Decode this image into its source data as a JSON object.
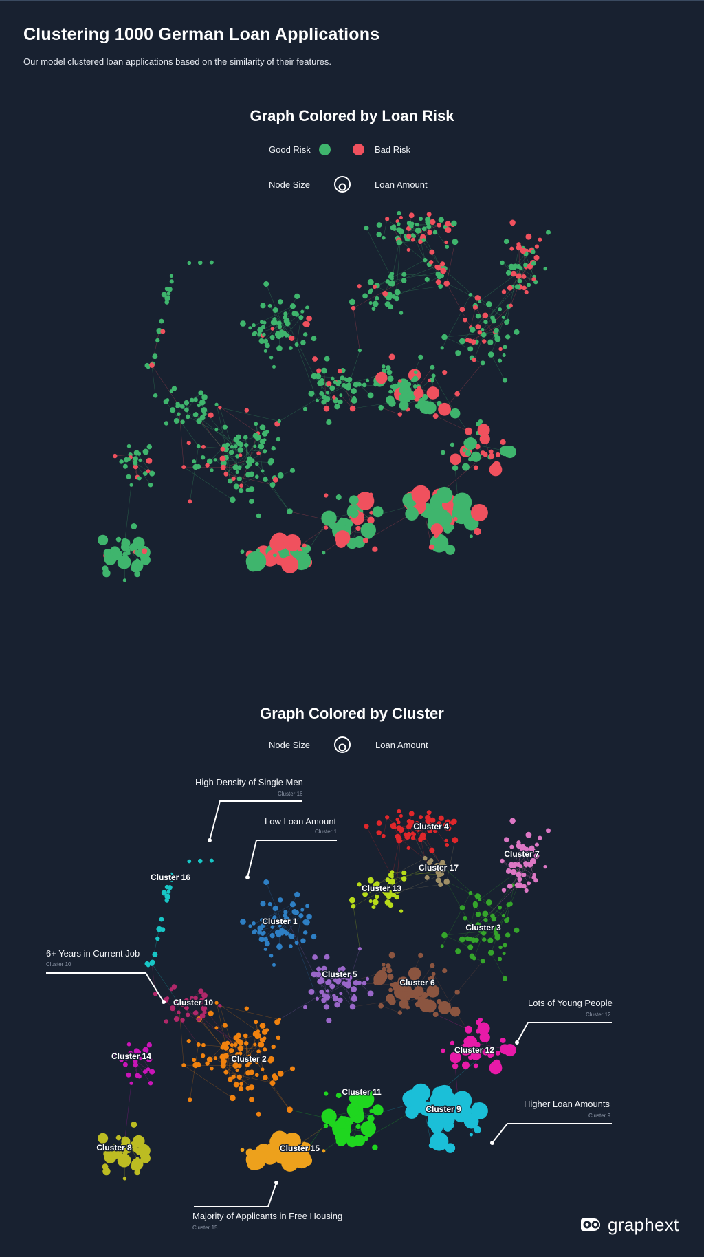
{
  "title": "Clustering 1000 German Loan Applications",
  "subtitle": "Our model clustered loan applications based on the similarity of their features.",
  "risk_section": {
    "title": "Graph Colored by Loan Risk",
    "legend": [
      {
        "label": "Good Risk",
        "color": "#3fb56d"
      },
      {
        "label": "Bad Risk",
        "color": "#f0515e"
      }
    ],
    "node_size_label": "Node Size",
    "node_size_value": "Loan Amount"
  },
  "cluster_section": {
    "title": "Graph Colored by Cluster",
    "node_size_label": "Node Size",
    "node_size_value": "Loan Amount"
  },
  "clusters": [
    {
      "label": "Cluster 1",
      "color": "#2e7fc4"
    },
    {
      "label": "Cluster 2",
      "color": "#f0820f"
    },
    {
      "label": "Cluster 3",
      "color": "#35a52b"
    },
    {
      "label": "Cluster 4",
      "color": "#e0272b"
    },
    {
      "label": "Cluster 5",
      "color": "#9a67c9"
    },
    {
      "label": "Cluster 6",
      "color": "#8b5540"
    },
    {
      "label": "Cluster 7",
      "color": "#dc77c4"
    },
    {
      "label": "Cluster 8",
      "color": "#bcbc22"
    },
    {
      "label": "Cluster 9",
      "color": "#1bbfd8"
    },
    {
      "label": "Cluster 10",
      "color": "#b0286a"
    },
    {
      "label": "Cluster 11",
      "color": "#1fd61f"
    },
    {
      "label": "Cluster 12",
      "color": "#e81aa8"
    },
    {
      "label": "Cluster 13",
      "color": "#b7db1a"
    },
    {
      "label": "Cluster 14",
      "color": "#c915b8"
    },
    {
      "label": "Cluster 15",
      "color": "#eda11c"
    },
    {
      "label": "Cluster 16",
      "color": "#18c6c6"
    },
    {
      "label": "Cluster 17",
      "color": "#9f8f66"
    }
  ],
  "annotations": [
    {
      "title": "High Density of Single Men",
      "cluster": "Cluster 16"
    },
    {
      "title": "Low Loan Amount",
      "cluster": "Cluster 1"
    },
    {
      "title": "6+ Years in Current Job",
      "cluster": "Cluster 10"
    },
    {
      "title": "Lots of Young People",
      "cluster": "Cluster 12"
    },
    {
      "title": "Higher Loan Amounts",
      "cluster": "Cluster 9"
    },
    {
      "title": "Majority of Applicants in Free Housing",
      "cluster": "Cluster 15"
    }
  ],
  "brand": {
    "name": "graphext",
    "icon": "graphext-logo-icon"
  }
}
